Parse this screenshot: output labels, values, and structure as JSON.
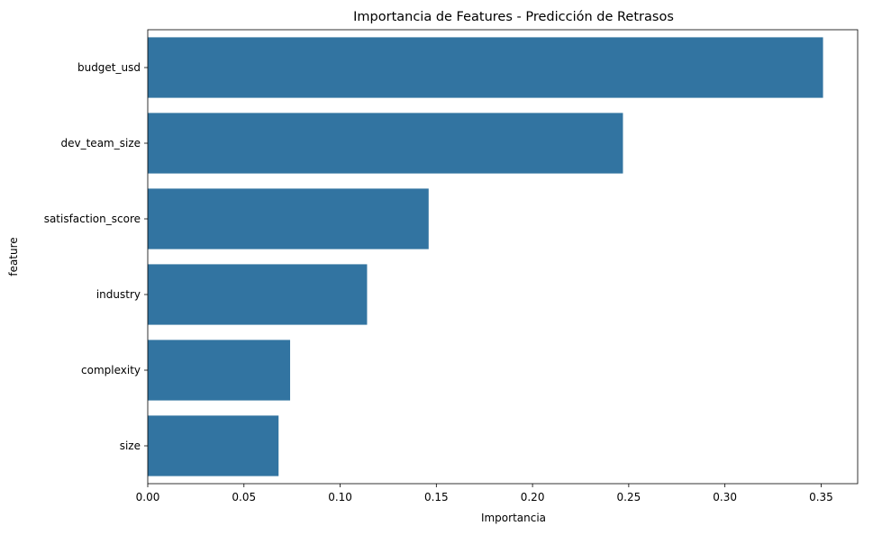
{
  "chart_data": {
    "type": "bar",
    "orientation": "horizontal",
    "title": "Importancia de Features - Predicción de Retrasos",
    "xlabel": "Importancia",
    "ylabel": "feature",
    "categories": [
      "budget_usd",
      "dev_team_size",
      "satisfaction_score",
      "industry",
      "complexity",
      "size"
    ],
    "values": [
      0.351,
      0.247,
      0.146,
      0.114,
      0.074,
      0.068
    ],
    "xlim": [
      0,
      0.369
    ],
    "xticks": [
      0.0,
      0.05,
      0.1,
      0.15,
      0.2,
      0.25,
      0.3,
      0.35
    ],
    "xtick_labels": [
      "0.00",
      "0.05",
      "0.10",
      "0.15",
      "0.20",
      "0.25",
      "0.30",
      "0.35"
    ],
    "bar_color": "#3274a1",
    "grid": false,
    "legend": false
  }
}
